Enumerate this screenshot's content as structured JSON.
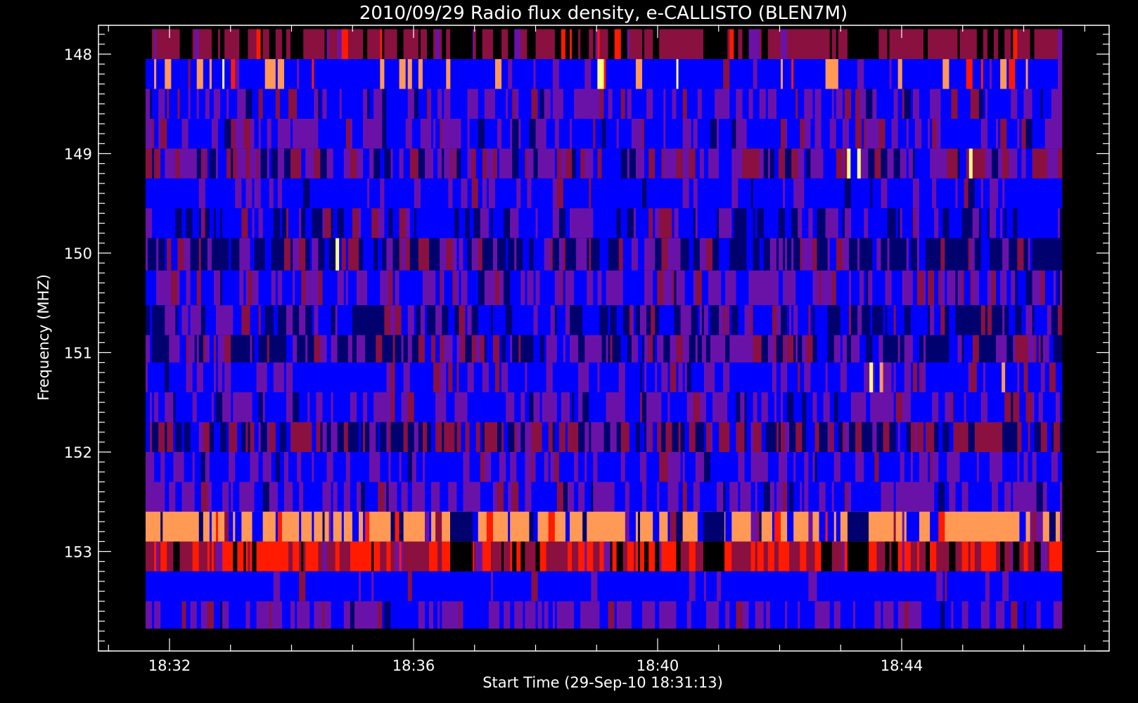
{
  "chart_data": {
    "type": "heatmap",
    "title": "2010/09/29  Radio flux density, e-CALLISTO (BLEN7M)",
    "xlabel": "Start Time (29-Sep-10 18:31:13)",
    "ylabel": "Frequency (MHZ)",
    "x_ticks": [
      "18:32",
      "18:36",
      "18:40",
      "18:44"
    ],
    "y_ticks": [
      "148",
      "149",
      "150",
      "151",
      "152",
      "153"
    ],
    "x_range_minutes": [
      18.85,
      18.7833
    ],
    "x_start": "18:31:13",
    "x_end": "18:46:13",
    "y_range_mhz": [
      147.8,
      154.0
    ],
    "frequency_channels_mhz": [
      147.9,
      148.2,
      148.5,
      148.8,
      149.1,
      149.4,
      149.7,
      150.0,
      150.35,
      150.7,
      150.95,
      151.25,
      151.55,
      151.85,
      152.15,
      152.45,
      152.75,
      153.05,
      153.35,
      153.65,
      153.9
    ],
    "colormap": [
      "#000000",
      "#00006e",
      "#0000ff",
      "#6a12a8",
      "#8a1040",
      "#ff1a00",
      "#ff9955",
      "#ffff80"
    ],
    "bursts": [
      {
        "time": "18:34:45",
        "freq_mhz": 150.0,
        "level": "high"
      },
      {
        "time": "18:43:08",
        "freq_mhz": 149.15,
        "level": "high"
      },
      {
        "time": "18:43:18",
        "freq_mhz": 149.15,
        "level": "high"
      },
      {
        "time": "18:45:08",
        "freq_mhz": 149.15,
        "level": "high"
      },
      {
        "time": "18:43:30",
        "freq_mhz": 151.35,
        "level": "high"
      },
      {
        "time": "18:43:40",
        "freq_mhz": 151.35,
        "level": "medium"
      },
      {
        "time": "18:45:40",
        "freq_mhz": 151.35,
        "level": "medium"
      }
    ],
    "grid": false,
    "legend": "none"
  }
}
